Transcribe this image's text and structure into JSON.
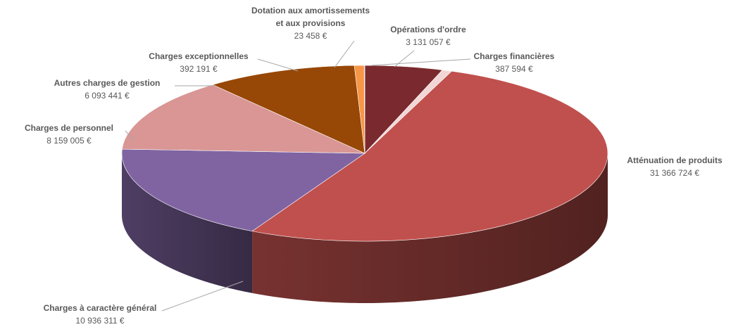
{
  "chart_data": {
    "type": "pie",
    "style": "3d",
    "slices": [
      {
        "name": "Opérations d'ordre",
        "value": "3 131 057 €",
        "amount": 3131057,
        "color": "#7a2a2e"
      },
      {
        "name": "Charges financières",
        "value": "387 594 €",
        "amount": 387594,
        "color": "#f2d6d6"
      },
      {
        "name": "Atténuation de produits",
        "value": "31 366 724 €",
        "amount": 31366724,
        "color": "#c0504d"
      },
      {
        "name": "Charges à caractère général",
        "value": "10 936 311 €",
        "amount": 10936311,
        "color": "#8064a2"
      },
      {
        "name": "Charges de personnel",
        "value": "8 159 005 €",
        "amount": 8159005,
        "color": "#d99694"
      },
      {
        "name": "Autres charges de gestion",
        "value": "6 093 441 €",
        "amount": 6093441,
        "color": "#974706"
      },
      {
        "name": "Charges exceptionnelles",
        "value": "392 191 €",
        "amount": 392191,
        "color": "#f79646"
      },
      {
        "name": "Dotation aux amortissements et aux provisions",
        "name_lines": [
          "Dotation aux amortissements",
          "et aux provisions"
        ],
        "value": "23 458 €",
        "amount": 23458,
        "color": "#4f81bd"
      }
    ]
  }
}
